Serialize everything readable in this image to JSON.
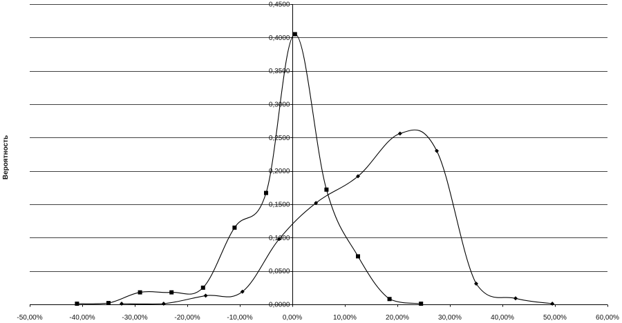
{
  "chart_data": {
    "type": "line",
    "title": "",
    "xlabel": "",
    "ylabel": "Вероятность",
    "xlim": [
      -0.5,
      0.6
    ],
    "ylim": [
      0,
      0.45
    ],
    "xticks": [
      -0.5,
      -0.4,
      -0.3,
      -0.2,
      -0.1,
      0.0,
      0.1,
      0.2,
      0.3,
      0.4,
      0.5,
      0.6
    ],
    "xtick_labels": [
      "-50,00%",
      "-40,00%",
      "-30,00%",
      "-20,00%",
      "-10,00%",
      "0,00%",
      "10,00%",
      "20,00%",
      "30,00%",
      "40,00%",
      "50,00%",
      "60,00%"
    ],
    "yticks": [
      0,
      0.05,
      0.1,
      0.15,
      0.2,
      0.25,
      0.3,
      0.35,
      0.4,
      0.45
    ],
    "ytick_labels": [
      "0,0000",
      "0,0500",
      "0,1000",
      "0,1500",
      "0,2000",
      "0,2500",
      "0,3000",
      "0,3500",
      "0,4000",
      "0,4500"
    ],
    "grid": true,
    "legend": false,
    "line_color": "#000000",
    "grid_color": "#000000",
    "series": [
      {
        "marker": "square",
        "x": [
          -0.41,
          -0.35,
          -0.29,
          -0.23,
          -0.17,
          -0.11,
          -0.05,
          0.005,
          0.065,
          0.125,
          0.185,
          0.245
        ],
        "y": [
          0.001,
          0.002,
          0.018,
          0.018,
          0.025,
          0.115,
          0.167,
          0.405,
          0.172,
          0.072,
          0.008,
          0.001
        ]
      },
      {
        "marker": "diamond",
        "x": [
          -0.325,
          -0.245,
          -0.165,
          -0.095,
          -0.025,
          0.045,
          0.125,
          0.205,
          0.275,
          0.35,
          0.425,
          0.495
        ],
        "y": [
          0.001,
          0.001,
          0.013,
          0.019,
          0.098,
          0.152,
          0.192,
          0.256,
          0.23,
          0.031,
          0.009,
          0.001
        ]
      }
    ]
  }
}
